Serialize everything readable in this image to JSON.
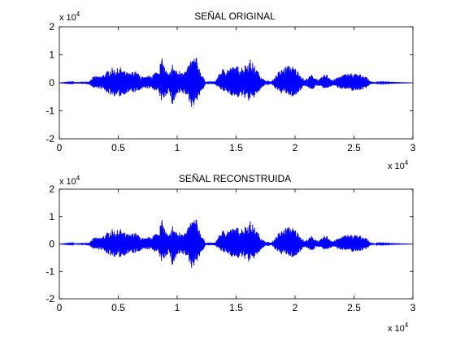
{
  "figure": {
    "background": "#ffffff",
    "axes_color": "#000000"
  },
  "chart_data": [
    {
      "type": "line",
      "title": "SEÑAL ORIGINAL",
      "xlabel": "",
      "ylabel": "",
      "x_exponent_label": "x 10",
      "x_exponent": "4",
      "y_exponent_label": "x 10",
      "y_exponent": "4",
      "xlim": [
        0,
        3
      ],
      "ylim": [
        -2,
        2
      ],
      "x_ticks": [
        0,
        0.5,
        1,
        1.5,
        2,
        2.5,
        3
      ],
      "x_tick_labels": [
        "0",
        "0.5",
        "1",
        "1.5",
        "2",
        "2.5",
        "3"
      ],
      "y_ticks": [
        -2,
        -1,
        0,
        1,
        2
      ],
      "y_tick_labels": [
        "-2",
        "-1",
        "0",
        "1",
        "2"
      ],
      "grid": false,
      "series": [
        {
          "color": "#0000ff",
          "x": [
            0,
            0.25,
            0.28,
            0.31,
            0.34,
            0.37,
            0.4,
            0.44,
            0.48,
            0.52,
            0.56,
            0.6,
            0.64,
            0.68,
            0.72,
            0.76,
            0.8,
            0.84,
            0.87,
            0.9,
            0.93,
            0.96,
            1.0,
            1.04,
            1.08,
            1.12,
            1.16,
            1.2,
            1.24,
            1.28,
            1.32,
            1.38,
            1.44,
            1.5,
            1.56,
            1.62,
            1.68,
            1.74,
            1.8,
            1.86,
            1.92,
            1.96,
            2.0,
            2.04,
            2.08,
            2.14,
            2.2,
            2.26,
            2.32,
            2.38,
            2.44,
            2.5,
            2.56,
            2.6,
            2.64,
            2.7,
            3.0
          ],
          "upper": [
            0,
            0.05,
            0.2,
            0.25,
            0.22,
            0.3,
            0.4,
            0.55,
            0.5,
            0.55,
            0.4,
            0.35,
            0.45,
            0.3,
            0.2,
            0.25,
            0.35,
            0.5,
            0.9,
            0.5,
            0.3,
            0.7,
            0.4,
            0.5,
            0.45,
            0.9,
            0.95,
            0.4,
            0.05,
            0.05,
            0.05,
            0.5,
            0.55,
            0.6,
            0.6,
            0.85,
            0.45,
            0.1,
            0.05,
            0.4,
            0.6,
            0.65,
            0.55,
            0.35,
            0.1,
            0.3,
            0.1,
            0.35,
            0.1,
            0.25,
            0.35,
            0.35,
            0.3,
            0.25,
            0.05,
            0.02,
            0
          ],
          "lower": [
            0,
            -0.05,
            -0.15,
            -0.2,
            -0.2,
            -0.25,
            -0.35,
            -0.45,
            -0.5,
            -0.5,
            -0.4,
            -0.35,
            -0.35,
            -0.3,
            -0.2,
            -0.2,
            -0.25,
            -0.35,
            -0.7,
            -0.5,
            -0.3,
            -0.85,
            -0.45,
            -0.4,
            -0.45,
            -0.9,
            -0.7,
            -0.4,
            -0.05,
            -0.05,
            -0.05,
            -0.3,
            -0.4,
            -0.55,
            -0.5,
            -0.7,
            -0.4,
            -0.1,
            -0.05,
            -0.35,
            -0.4,
            -0.5,
            -0.5,
            -0.3,
            -0.1,
            -0.25,
            -0.1,
            -0.25,
            -0.1,
            -0.2,
            -0.25,
            -0.3,
            -0.25,
            -0.2,
            -0.05,
            -0.02,
            0
          ]
        }
      ]
    },
    {
      "type": "line",
      "title": "SEÑAL RECONSTRUIDA",
      "xlabel": "",
      "ylabel": "",
      "x_exponent_label": "x 10",
      "x_exponent": "4",
      "y_exponent_label": "x 10",
      "y_exponent": "4",
      "xlim": [
        0,
        3
      ],
      "ylim": [
        -2,
        2
      ],
      "x_ticks": [
        0,
        0.5,
        1,
        1.5,
        2,
        2.5,
        3
      ],
      "x_tick_labels": [
        "0",
        "0.5",
        "1",
        "1.5",
        "2",
        "2.5",
        "3"
      ],
      "y_ticks": [
        -2,
        -1,
        0,
        1,
        2
      ],
      "y_tick_labels": [
        "-2",
        "-1",
        "0",
        "1",
        "2"
      ],
      "grid": false,
      "series": [
        {
          "color": "#0000ff",
          "x": [
            0,
            0.25,
            0.28,
            0.31,
            0.34,
            0.37,
            0.4,
            0.44,
            0.48,
            0.52,
            0.56,
            0.6,
            0.64,
            0.68,
            0.72,
            0.76,
            0.8,
            0.84,
            0.87,
            0.9,
            0.93,
            0.96,
            1.0,
            1.04,
            1.08,
            1.12,
            1.16,
            1.2,
            1.24,
            1.28,
            1.32,
            1.38,
            1.44,
            1.5,
            1.56,
            1.62,
            1.68,
            1.74,
            1.8,
            1.86,
            1.92,
            1.96,
            2.0,
            2.04,
            2.08,
            2.14,
            2.2,
            2.26,
            2.32,
            2.38,
            2.44,
            2.5,
            2.56,
            2.6,
            2.64,
            2.7,
            3.0
          ],
          "upper": [
            0,
            0.05,
            0.2,
            0.25,
            0.22,
            0.3,
            0.4,
            0.55,
            0.5,
            0.55,
            0.4,
            0.35,
            0.45,
            0.3,
            0.2,
            0.25,
            0.35,
            0.5,
            0.9,
            0.5,
            0.3,
            0.7,
            0.4,
            0.5,
            0.45,
            0.9,
            0.95,
            0.4,
            0.05,
            0.05,
            0.05,
            0.5,
            0.55,
            0.6,
            0.6,
            0.85,
            0.45,
            0.1,
            0.05,
            0.4,
            0.6,
            0.65,
            0.55,
            0.35,
            0.1,
            0.3,
            0.1,
            0.35,
            0.1,
            0.25,
            0.35,
            0.35,
            0.3,
            0.25,
            0.05,
            0.02,
            0
          ],
          "lower": [
            0,
            -0.05,
            -0.15,
            -0.2,
            -0.2,
            -0.25,
            -0.35,
            -0.45,
            -0.5,
            -0.5,
            -0.4,
            -0.35,
            -0.35,
            -0.3,
            -0.2,
            -0.2,
            -0.25,
            -0.35,
            -0.7,
            -0.5,
            -0.3,
            -0.85,
            -0.45,
            -0.4,
            -0.45,
            -0.9,
            -0.7,
            -0.4,
            -0.05,
            -0.05,
            -0.05,
            -0.3,
            -0.4,
            -0.55,
            -0.5,
            -0.7,
            -0.4,
            -0.1,
            -0.05,
            -0.35,
            -0.4,
            -0.5,
            -0.5,
            -0.3,
            -0.1,
            -0.25,
            -0.1,
            -0.25,
            -0.1,
            -0.2,
            -0.25,
            -0.3,
            -0.25,
            -0.2,
            -0.05,
            -0.02,
            0
          ]
        }
      ]
    }
  ]
}
